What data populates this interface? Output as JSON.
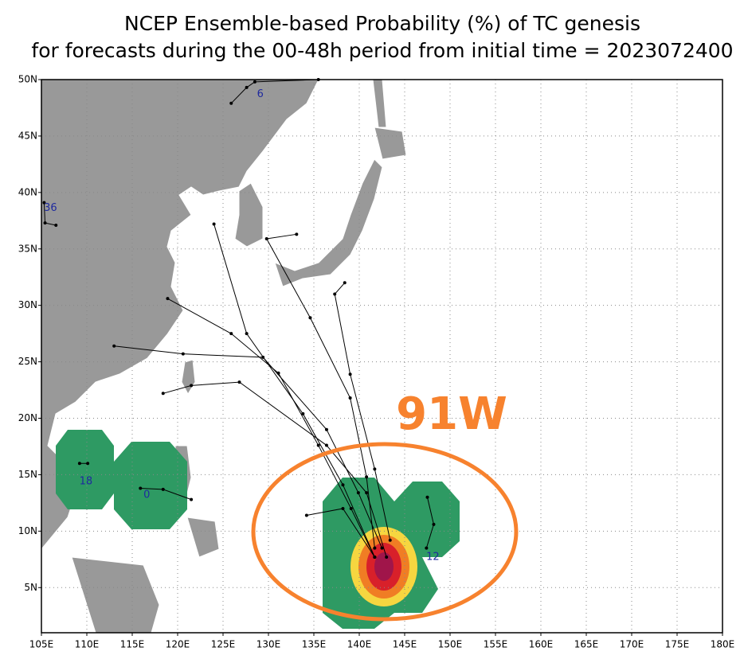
{
  "chart_data": {
    "type": "map",
    "title": "NCEP Ensemble-based Probability (%) of TC genesis",
    "subtitle": "for forecasts during the 00-48h period from initial time = 2023072400",
    "annotation": "91W",
    "xlim": [
      105,
      180
    ],
    "ylim": [
      1,
      50
    ],
    "grid": true,
    "xticks": [
      {
        "value": 105,
        "label": "105E"
      },
      {
        "value": 110,
        "label": "110E"
      },
      {
        "value": 115,
        "label": "115E"
      },
      {
        "value": 120,
        "label": "120E"
      },
      {
        "value": 125,
        "label": "125E"
      },
      {
        "value": 130,
        "label": "130E"
      },
      {
        "value": 135,
        "label": "135E"
      },
      {
        "value": 140,
        "label": "140E"
      },
      {
        "value": 145,
        "label": "145E"
      },
      {
        "value": 150,
        "label": "150E"
      },
      {
        "value": 155,
        "label": "155E"
      },
      {
        "value": 160,
        "label": "160E"
      },
      {
        "value": 165,
        "label": "165E"
      },
      {
        "value": 170,
        "label": "170E"
      },
      {
        "value": 175,
        "label": "175E"
      },
      {
        "value": 180,
        "label": "180E"
      }
    ],
    "yticks": [
      {
        "value": 5,
        "label": "5N"
      },
      {
        "value": 10,
        "label": "10N"
      },
      {
        "value": 15,
        "label": "15N"
      },
      {
        "value": 20,
        "label": "20N"
      },
      {
        "value": 25,
        "label": "25N"
      },
      {
        "value": 30,
        "label": "30N"
      },
      {
        "value": 35,
        "label": "35N"
      },
      {
        "value": 40,
        "label": "40N"
      },
      {
        "value": 45,
        "label": "45N"
      },
      {
        "value": 50,
        "label": "50N"
      }
    ],
    "track_color": "#000000",
    "tracks": [
      {
        "lon": [
          141.7,
          139.1,
          135.5,
          131.1,
          125.9,
          118.9
        ],
        "lat": [
          7.7,
          12.0,
          17.6,
          24.0,
          27.5,
          30.6
        ]
      },
      {
        "lon": [
          142.5,
          139.9,
          136.4,
          129.4,
          120.6,
          113.0
        ],
        "lat": [
          8.5,
          13.4,
          19.0,
          25.4,
          25.7,
          26.4
        ]
      },
      {
        "lon": [
          141.7,
          140.8,
          139.0,
          134.6,
          129.8,
          133.1
        ],
        "lat": [
          8.5,
          14.8,
          21.8,
          28.9,
          35.9,
          36.3
        ]
      },
      {
        "lon": [
          143.4,
          141.7,
          139.0,
          137.3,
          138.4
        ],
        "lat": [
          9.2,
          15.5,
          23.9,
          31.0,
          32.0
        ]
      },
      {
        "lon": [
          141.7,
          138.2,
          133.8,
          127.6,
          124.0
        ],
        "lat": [
          7.7,
          14.1,
          20.4,
          27.5,
          37.2
        ]
      },
      {
        "lon": [
          143.0,
          140.8,
          136.4,
          126.8,
          121.5,
          118.4
        ],
        "lat": [
          7.7,
          13.4,
          17.6,
          23.2,
          22.9,
          22.2
        ]
      },
      {
        "lon": [
          147.5,
          148.2,
          147.4
        ],
        "lat": [
          13.0,
          10.6,
          8.5
        ]
      },
      {
        "lon": [
          134.2,
          138.2,
          141.7
        ],
        "lat": [
          11.4,
          12.0,
          7.7
        ]
      },
      {
        "lon": [
          115.9,
          118.4,
          121.5
        ],
        "lat": [
          13.8,
          13.7,
          12.8
        ]
      },
      {
        "lon": [
          109.2,
          110.1
        ],
        "lat": [
          16.0,
          16.0
        ]
      },
      {
        "lon": [
          135.5,
          128.5,
          127.6,
          125.9
        ],
        "lat": [
          50.0,
          49.8,
          49.3,
          47.9
        ]
      },
      {
        "lon": [
          105.3,
          105.4,
          106.6
        ],
        "lat": [
          39.1,
          37.3,
          37.1
        ]
      }
    ],
    "label_color": "#1f2a9e",
    "labels": [
      {
        "text": "6",
        "lon": 129.1,
        "lat": 48.7
      },
      {
        "text": "36",
        "lon": 106.0,
        "lat": 38.6
      },
      {
        "text": "18",
        "lon": 109.9,
        "lat": 14.4
      },
      {
        "text": "0",
        "lon": 116.6,
        "lat": 13.2
      },
      {
        "text": "12",
        "lon": 148.1,
        "lat": 7.7
      }
    ]
  }
}
